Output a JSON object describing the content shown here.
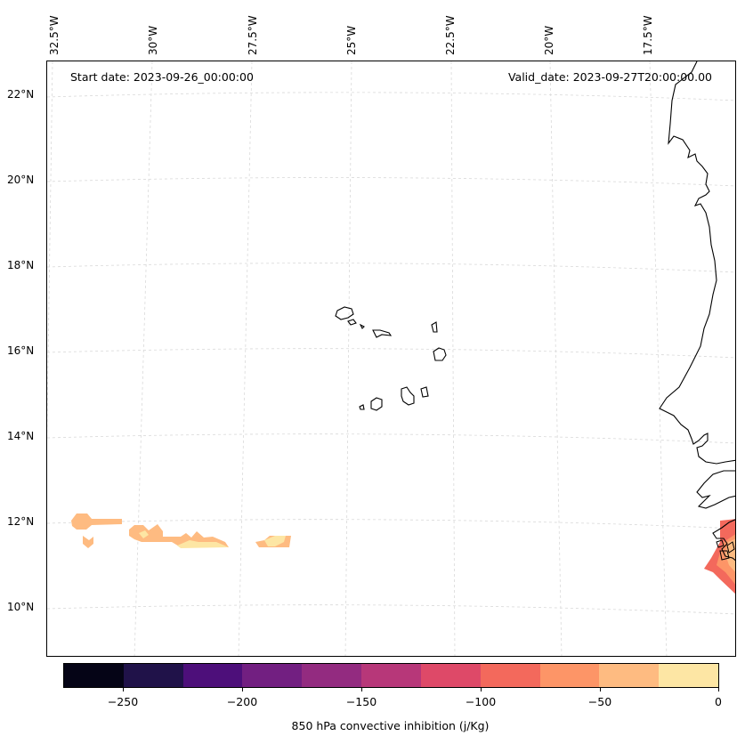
{
  "map": {
    "start_date": "Start date: 2023-09-26_00:00:00",
    "valid_date": "Valid_date: 2023-09-27T20:00:00.00",
    "lon_labels": [
      "32.5°W",
      "30°W",
      "27.5°W",
      "25°W",
      "22.5°W",
      "20°W",
      "17.5°W"
    ],
    "lat_labels": [
      "22°N",
      "20°N",
      "18°N",
      "16°N",
      "14°N",
      "12°N",
      "10°N"
    ]
  },
  "colorbar": {
    "title": "850 hPa convective inhibition (j/Kg)",
    "tick_labels": [
      "−250",
      "−200",
      "−150",
      "−100",
      "−50",
      "0"
    ],
    "colors": [
      "#050416",
      "#201249",
      "#4d0f7a",
      "#721f81",
      "#932b80",
      "#b73779",
      "#de4968",
      "#f3695c",
      "#fd9567",
      "#febb81",
      "#fde6a4"
    ]
  },
  "colors": {
    "coast": "#000000",
    "grid": "#d9d9d9"
  }
}
